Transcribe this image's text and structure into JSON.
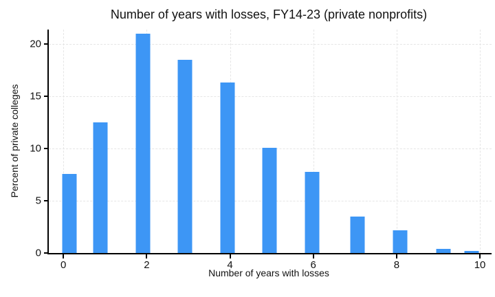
{
  "chart_data": {
    "type": "bar",
    "title": "Number of years with losses, FY14-23 (private nonprofits)",
    "xlabel": "Number of years with losses",
    "ylabel": "Percent of private colleges",
    "categories": [
      0,
      1,
      2,
      3,
      4,
      5,
      6,
      7,
      8,
      9,
      10
    ],
    "values": [
      7.6,
      12.5,
      21.0,
      18.5,
      16.3,
      10.1,
      7.8,
      3.5,
      2.2,
      0.4,
      0.2
    ],
    "x_ticks": [
      0,
      2,
      4,
      6,
      8,
      10
    ],
    "y_ticks": [
      0,
      5,
      10,
      15,
      20
    ],
    "xlim": [
      -0.35,
      10.28
    ],
    "ylim": [
      0,
      21.4
    ],
    "grid": "dashed light-gray horizontal lines at y ticks and vertical lines at x ticks",
    "legend": "none",
    "bar_color": "#3d96f5",
    "axis_color": "#000000",
    "gridline_color": "#e5e5e5",
    "bar_center_fracs": [
      0.046,
      0.116,
      0.212,
      0.307,
      0.403,
      0.498,
      0.594,
      0.697,
      0.794,
      0.891,
      0.955
    ]
  }
}
